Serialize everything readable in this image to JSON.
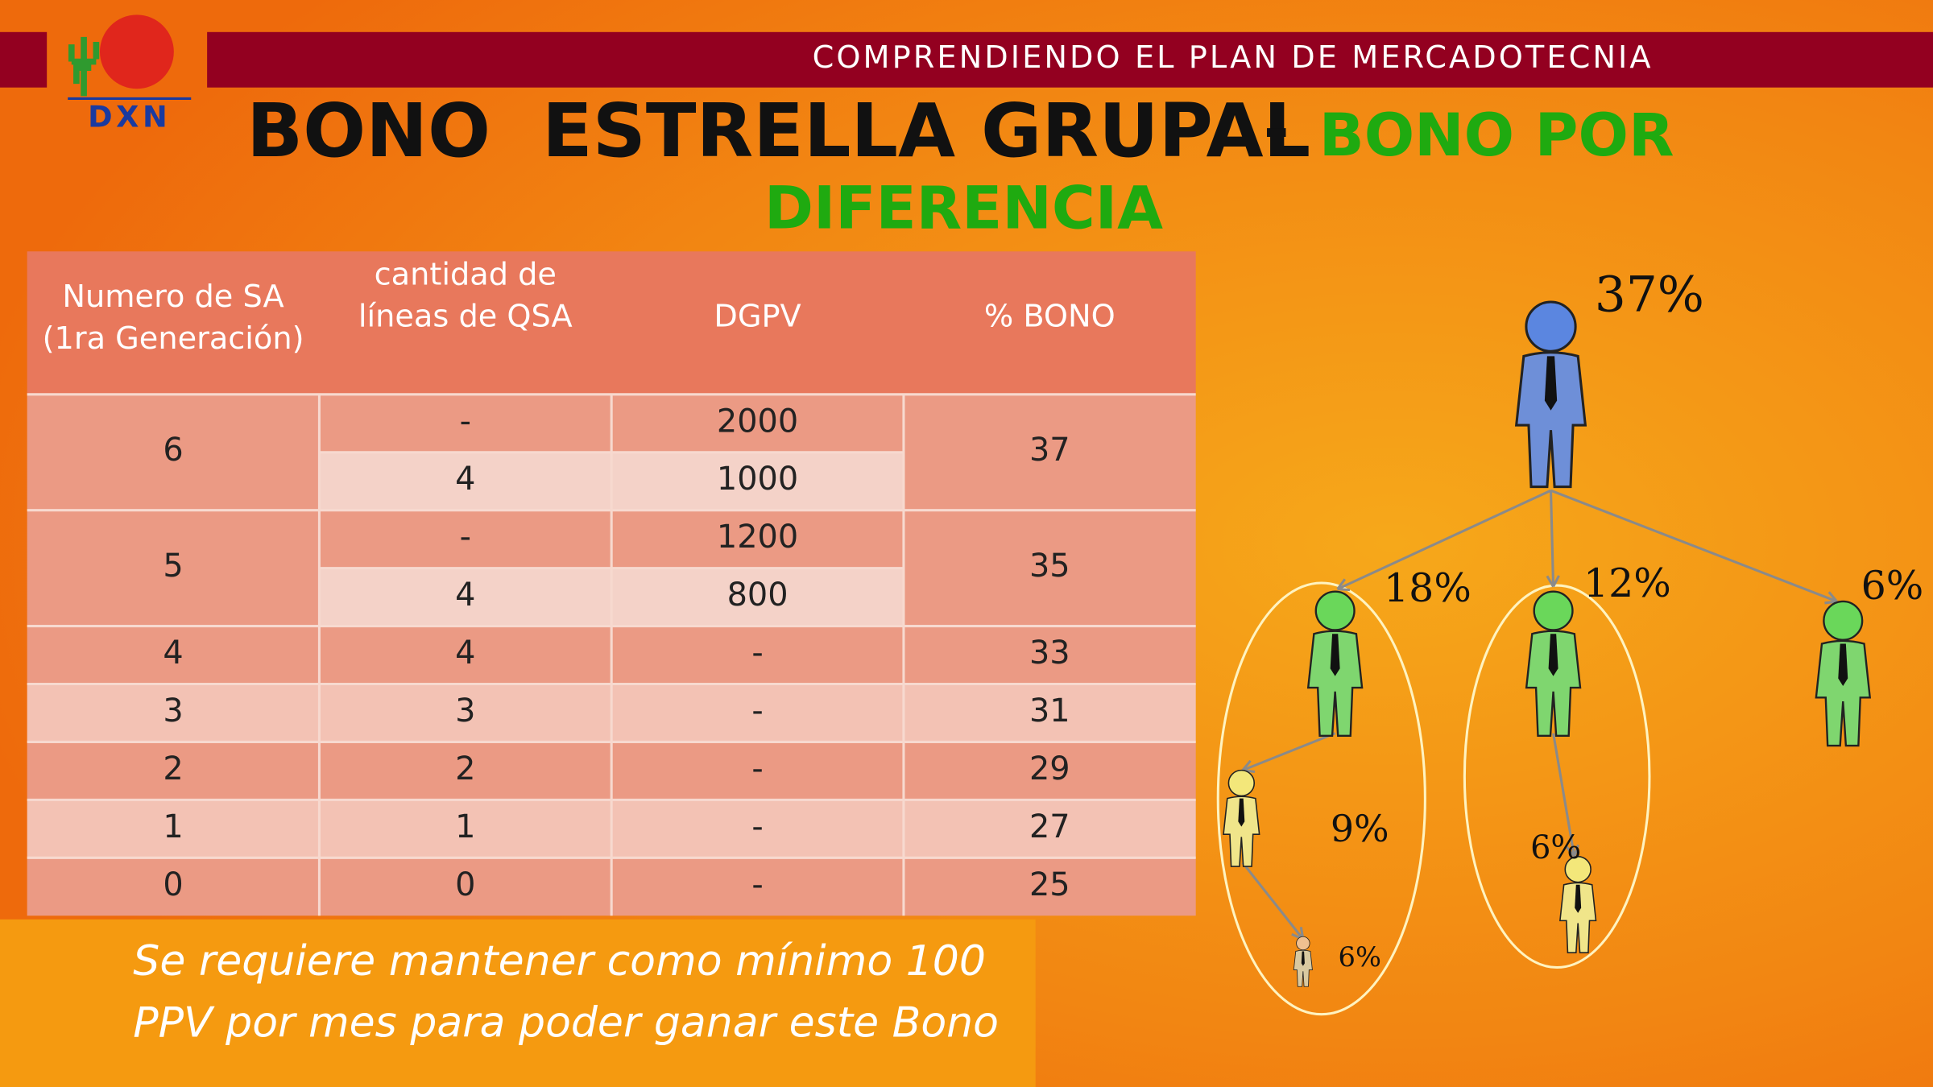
{
  "header": {
    "banner": "COMPRENDIENDO EL PLAN DE MERCADOTECNIA",
    "logo": "DXN"
  },
  "title": {
    "main": "BONO  ESTRELLA GRUPAL",
    "separator": "-",
    "highlight_1": "BONO POR",
    "highlight_2": "DIFERENCIA"
  },
  "table": {
    "headers": [
      [
        "Numero de SA",
        "(1ra Generación)"
      ],
      [
        "cantidad de",
        "líneas de QSA"
      ],
      [
        "DGPV"
      ],
      [
        "%  BONO"
      ]
    ],
    "rows": [
      {
        "sa": "6",
        "lines": [
          "-",
          "4"
        ],
        "dgpv": [
          "2000",
          "1000"
        ],
        "bono": "37"
      },
      {
        "sa": "5",
        "lines": [
          "-",
          "4"
        ],
        "dgpv": [
          "1200",
          "800"
        ],
        "bono": "35"
      },
      {
        "sa": "4",
        "lines": [
          "4"
        ],
        "dgpv": [
          "-"
        ],
        "bono": "33"
      },
      {
        "sa": "3",
        "lines": [
          "3"
        ],
        "dgpv": [
          "-"
        ],
        "bono": "31"
      },
      {
        "sa": "2",
        "lines": [
          "2"
        ],
        "dgpv": [
          "-"
        ],
        "bono": "29"
      },
      {
        "sa": "1",
        "lines": [
          "1"
        ],
        "dgpv": [
          "-"
        ],
        "bono": "27"
      },
      {
        "sa": "0",
        "lines": [
          "0"
        ],
        "dgpv": [
          "-"
        ],
        "bono": "25"
      }
    ]
  },
  "diagram": {
    "nodes": [
      {
        "label": "37%"
      },
      {
        "label": "18%"
      },
      {
        "label": "12%"
      },
      {
        "label": "6%"
      },
      {
        "label": "9%"
      },
      {
        "label": "6%"
      },
      {
        "label": "6%"
      }
    ]
  },
  "note": [
    "Se requiere mantener como mínimo 100",
    "PPV por mes para poder ganar este Bono"
  ]
}
